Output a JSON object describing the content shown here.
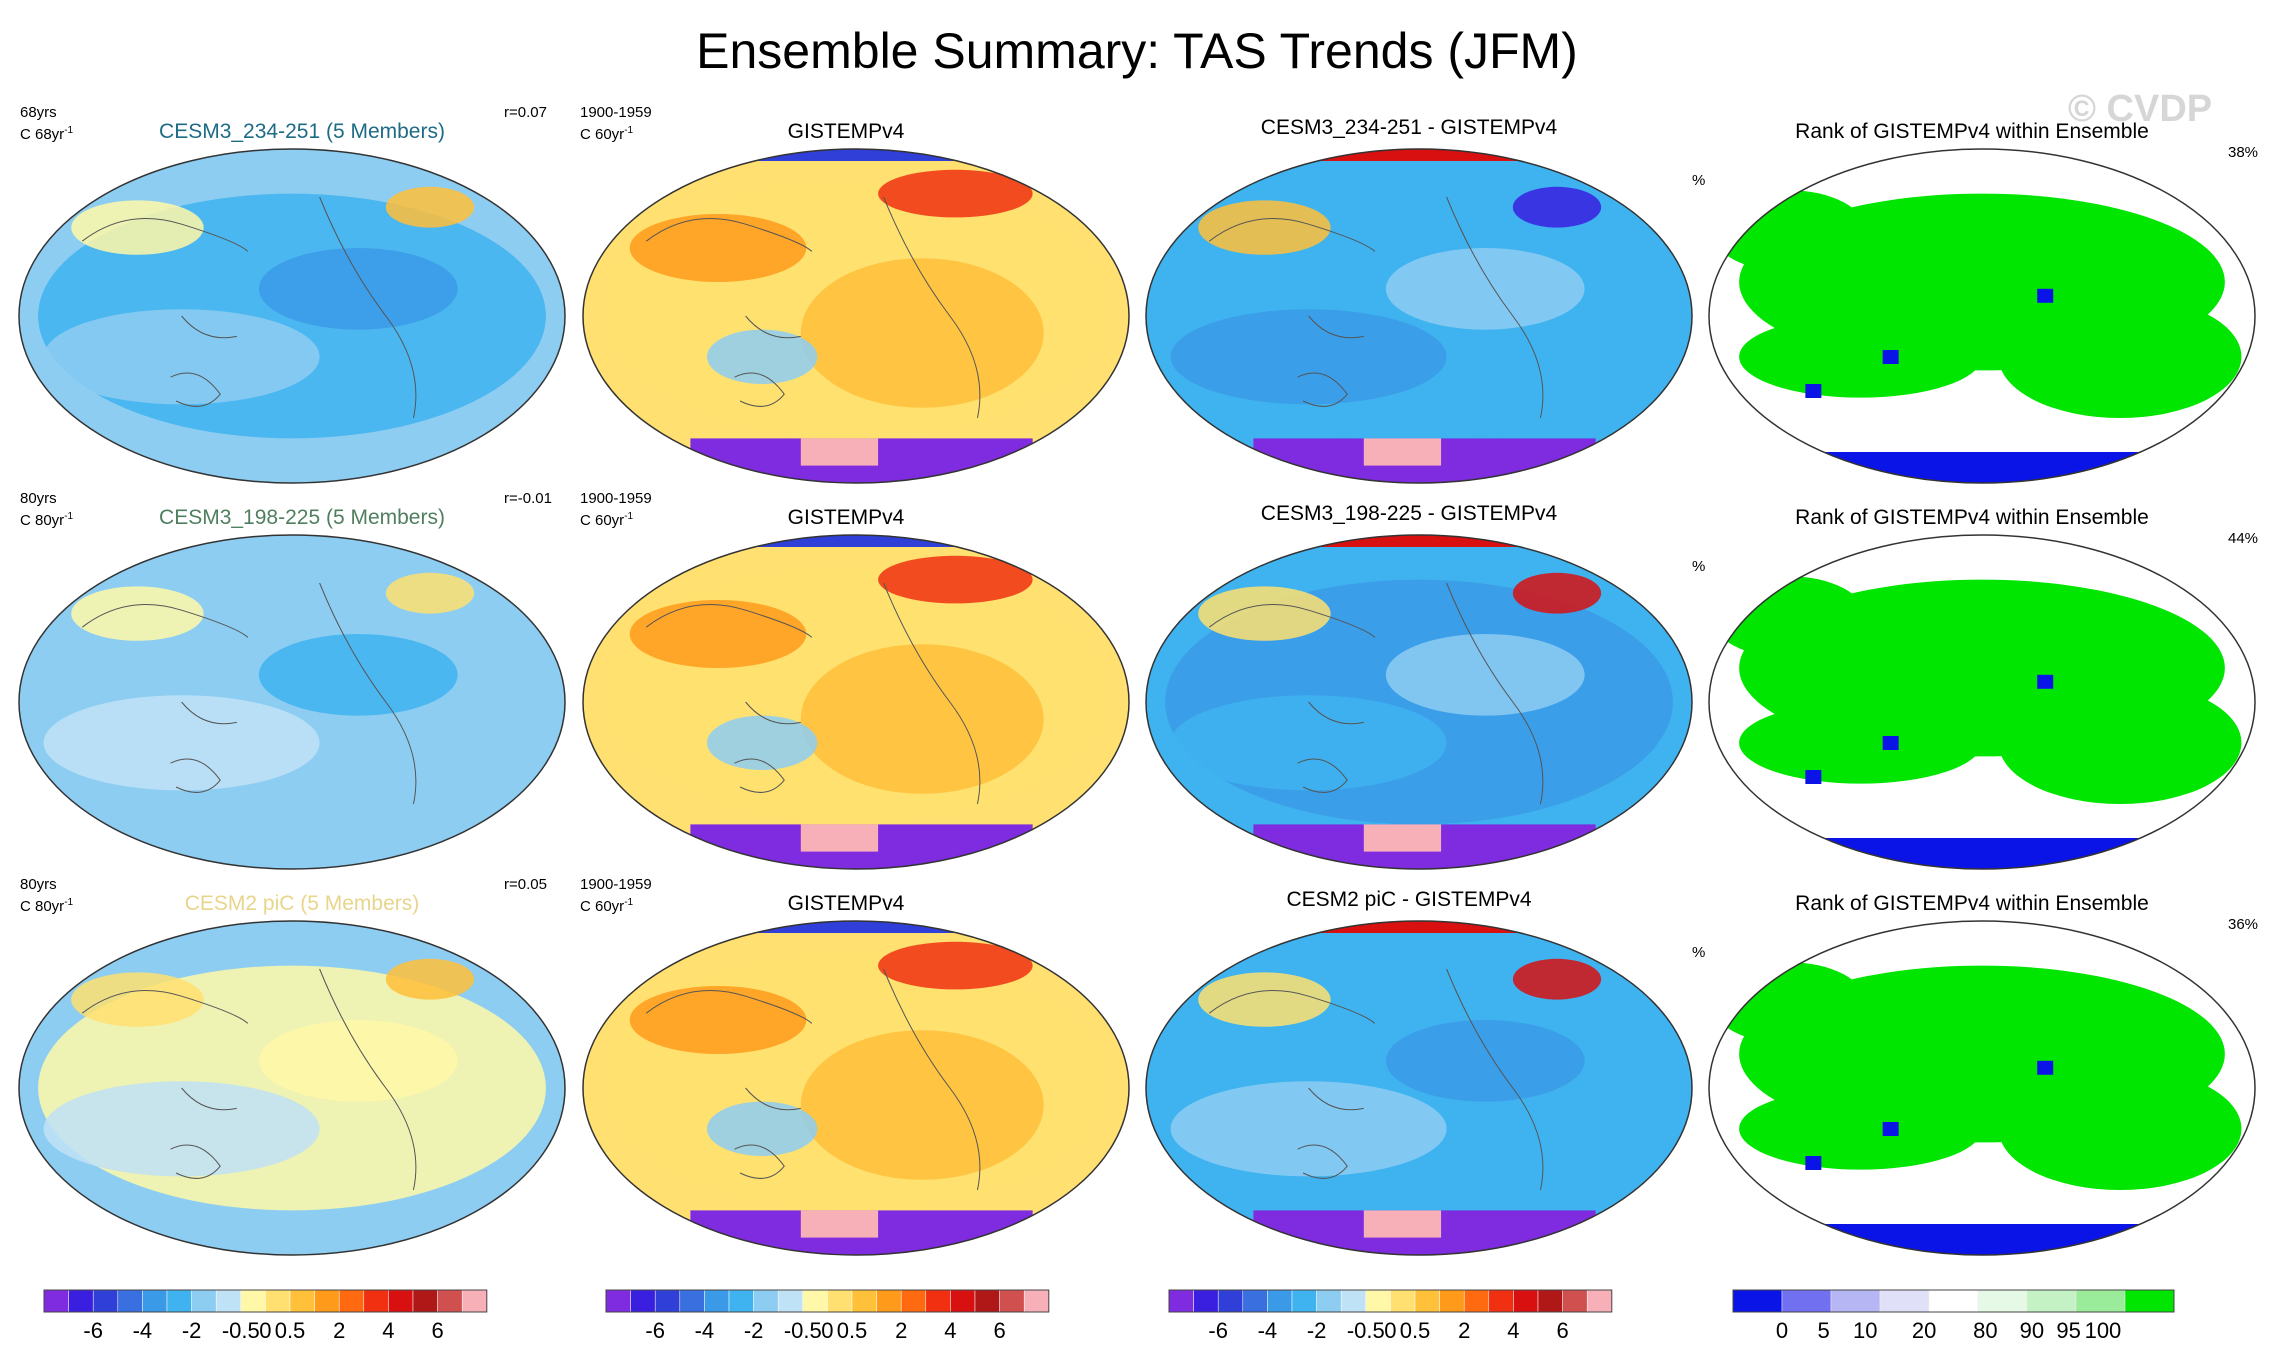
{
  "title": "Ensemble Summary: TAS Trends (JFM)",
  "watermark": "© CVDP",
  "colors": {
    "model1_title": "#1e6b86",
    "model2_title": "#4f7f5e",
    "model3_title": "#e8d58c",
    "trend_scale": [
      "#7f2be0",
      "#3a1fe0",
      "#2f3fd8",
      "#3a6fe0",
      "#3b9ae8",
      "#3fb3f0",
      "#8dcdf2",
      "#bfe2f6",
      "#fff8a8",
      "#ffe070",
      "#ffc03a",
      "#ff9a1a",
      "#ff6a10",
      "#f03010",
      "#d81010",
      "#b01818",
      "#d05050",
      "#f8b0b8"
    ],
    "rank_scale": [
      "#0a14e6",
      "#7070f0",
      "#b6b6f4",
      "#e0e0f8",
      "#ffffff",
      "#e6f8e6",
      "#c4f2c4",
      "#9aeb9a",
      "#00e600"
    ]
  },
  "rows": [
    {
      "model": {
        "title": "CESM3_234-251 (5 Members)",
        "years": "68yrs",
        "units": "C 68yr",
        "units_exp": "-1",
        "r": "r=0.07",
        "fields": [
          "#3fb3f0",
          "#8dcdf2",
          "#3b9ae8",
          "#fff8a8",
          "#ffc03a"
        ]
      },
      "obs": {
        "title": "GISTEMPv4",
        "period": "1900-1959",
        "units": "C 60yr",
        "units_exp": "-1"
      },
      "diff": {
        "title": "CESM3_234-251 - GISTEMPv4",
        "fields": [
          "#3fb3f0",
          "#3b9ae8",
          "#8dcdf2",
          "#ffc03a",
          "#3a1fe0"
        ]
      },
      "rank": {
        "title": "Rank of GISTEMPv4 within Ensemble",
        "units": "%",
        "pct": "38%"
      }
    },
    {
      "model": {
        "title": "CESM3_198-225 (5 Members)",
        "years": "80yrs",
        "units": "C 80yr",
        "units_exp": "-1",
        "r": "r=-0.01",
        "fields": [
          "#8dcdf2",
          "#bfe2f6",
          "#3fb3f0",
          "#fff8a8",
          "#ffe070"
        ]
      },
      "obs": {
        "title": "GISTEMPv4",
        "period": "1900-1959",
        "units": "C 60yr",
        "units_exp": "-1"
      },
      "diff": {
        "title": "CESM3_198-225 - GISTEMPv4",
        "fields": [
          "#3b9ae8",
          "#3fb3f0",
          "#8dcdf2",
          "#ffe070",
          "#d81010"
        ]
      },
      "rank": {
        "title": "Rank of GISTEMPv4 within Ensemble",
        "units": "%",
        "pct": "44%"
      }
    },
    {
      "model": {
        "title": "CESM2 piC (5 Members)",
        "years": "80yrs",
        "units": "C 80yr",
        "units_exp": "-1",
        "r": "r=0.05",
        "fields": [
          "#fff8a8",
          "#bfe2f6",
          "#fff8a8",
          "#ffe070",
          "#ffc03a"
        ]
      },
      "obs": {
        "title": "GISTEMPv4",
        "period": "1900-1959",
        "units": "C 60yr",
        "units_exp": "-1"
      },
      "diff": {
        "title": "CESM2 piC - GISTEMPv4",
        "fields": [
          "#3fb3f0",
          "#8dcdf2",
          "#3b9ae8",
          "#ffe070",
          "#d81010"
        ]
      },
      "rank": {
        "title": "Rank of GISTEMPv4 within Ensemble",
        "units": "%",
        "pct": "36%"
      }
    }
  ],
  "chart_data": [
    {
      "type": "heatmap",
      "title": "Ensemble Summary: TAS Trends (JFM)",
      "layout": "3 rows x 4 map panels",
      "panel_columns": [
        "Ensemble mean trend",
        "GISTEMPv4 observed trend",
        "Ensemble minus GISTEMPv4",
        "Rank of GISTEMPv4 within Ensemble"
      ]
    },
    {
      "type": "colorbar",
      "name": "trend",
      "tick_labels": [
        "-6",
        "-4",
        "-2",
        "-0.5",
        "0",
        "0.5",
        "2",
        "4",
        "6"
      ],
      "n_colors": 18,
      "count": 3
    },
    {
      "type": "colorbar",
      "name": "rank",
      "tick_labels": [
        "0",
        "5",
        "10",
        "20",
        "80",
        "90",
        "95",
        "100"
      ],
      "n_colors": 9
    }
  ]
}
